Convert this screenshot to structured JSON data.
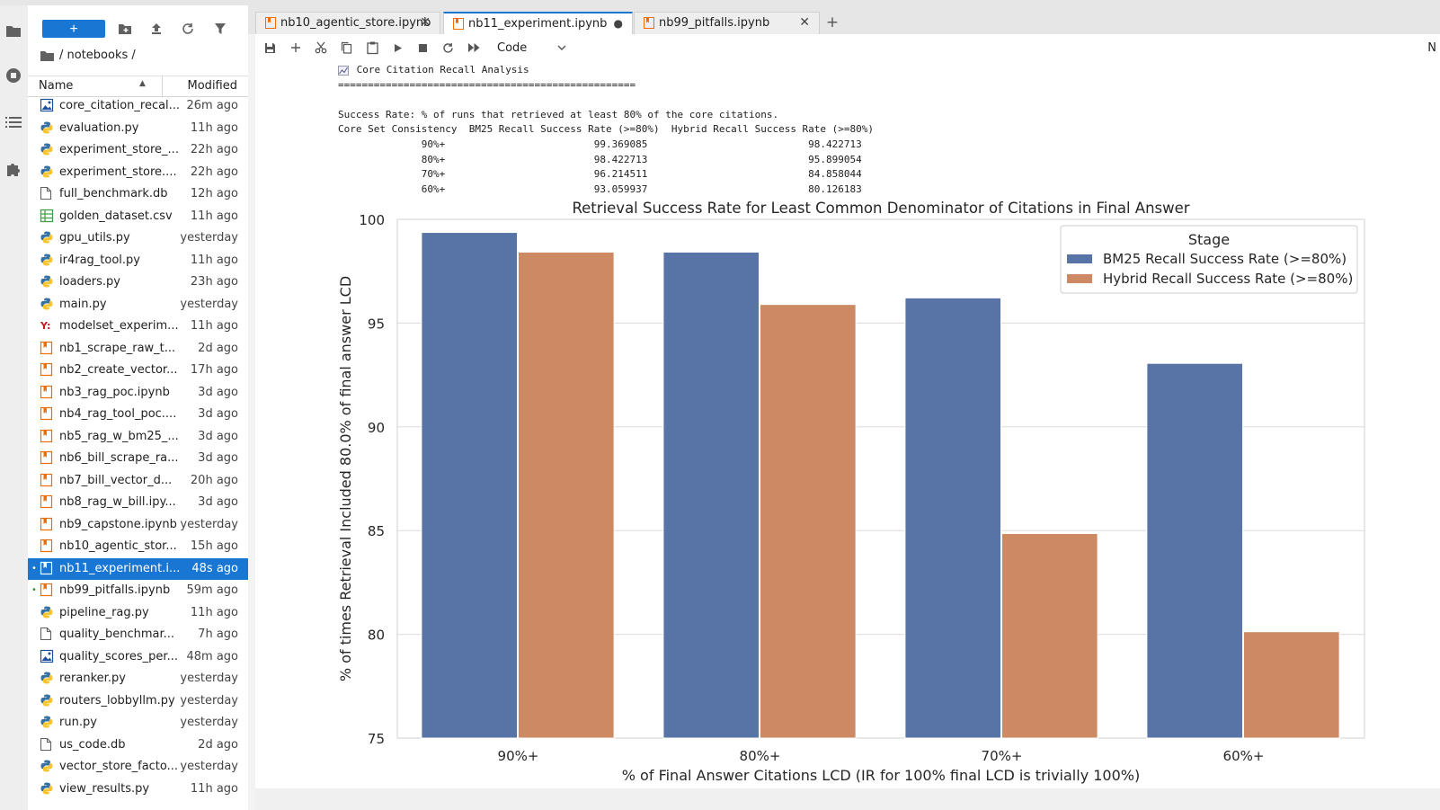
{
  "file_browser": {
    "new_label": "+",
    "breadcrumb": "/ notebooks /",
    "header_name": "Name",
    "header_modified": "Modified",
    "files": [
      {
        "name": "core_citation_recal...",
        "modified": "26m ago",
        "kind": "image-icon"
      },
      {
        "name": "evaluation.py",
        "modified": "11h ago",
        "kind": "python-icon"
      },
      {
        "name": "experiment_store_...",
        "modified": "22h ago",
        "kind": "python-icon"
      },
      {
        "name": "experiment_store....",
        "modified": "22h ago",
        "kind": "python-icon"
      },
      {
        "name": "full_benchmark.db",
        "modified": "12h ago",
        "kind": "file-icon"
      },
      {
        "name": "golden_dataset.csv",
        "modified": "11h ago",
        "kind": "csv-icon"
      },
      {
        "name": "gpu_utils.py",
        "modified": "yesterday",
        "kind": "python-icon"
      },
      {
        "name": "ir4rag_tool.py",
        "modified": "11h ago",
        "kind": "python-icon"
      },
      {
        "name": "loaders.py",
        "modified": "23h ago",
        "kind": "python-icon"
      },
      {
        "name": "main.py",
        "modified": "yesterday",
        "kind": "python-icon"
      },
      {
        "name": "modelset_experim...",
        "modified": "11h ago",
        "kind": "yaml-icon"
      },
      {
        "name": "nb1_scrape_raw_t...",
        "modified": "2d ago",
        "kind": "notebook-icon"
      },
      {
        "name": "nb2_create_vector...",
        "modified": "17h ago",
        "kind": "notebook-icon"
      },
      {
        "name": "nb3_rag_poc.ipynb",
        "modified": "3d ago",
        "kind": "notebook-icon"
      },
      {
        "name": "nb4_rag_tool_poc....",
        "modified": "3d ago",
        "kind": "notebook-icon"
      },
      {
        "name": "nb5_rag_w_bm25_...",
        "modified": "3d ago",
        "kind": "notebook-icon"
      },
      {
        "name": "nb6_bill_scrape_ra...",
        "modified": "3d ago",
        "kind": "notebook-icon"
      },
      {
        "name": "nb7_bill_vector_d...",
        "modified": "20h ago",
        "kind": "notebook-icon"
      },
      {
        "name": "nb8_rag_w_bill.ipy...",
        "modified": "3d ago",
        "kind": "notebook-icon"
      },
      {
        "name": "nb9_capstone.ipynb",
        "modified": "yesterday",
        "kind": "notebook-icon"
      },
      {
        "name": "nb10_agentic_stor...",
        "modified": "15h ago",
        "kind": "notebook-icon"
      },
      {
        "name": "nb11_experiment.i...",
        "modified": "48s ago",
        "kind": "notebook-icon",
        "selected": true,
        "running": true
      },
      {
        "name": "nb99_pitfalls.ipynb",
        "modified": "59m ago",
        "kind": "notebook-icon",
        "running": true
      },
      {
        "name": "pipeline_rag.py",
        "modified": "11h ago",
        "kind": "python-icon"
      },
      {
        "name": "quality_benchmar...",
        "modified": "7h ago",
        "kind": "file-icon"
      },
      {
        "name": "quality_scores_per...",
        "modified": "48m ago",
        "kind": "image-icon"
      },
      {
        "name": "reranker.py",
        "modified": "yesterday",
        "kind": "python-icon"
      },
      {
        "name": "routers_lobbyllm.py",
        "modified": "yesterday",
        "kind": "python-icon"
      },
      {
        "name": "run.py",
        "modified": "yesterday",
        "kind": "python-icon"
      },
      {
        "name": "us_code.db",
        "modified": "2d ago",
        "kind": "file-icon"
      },
      {
        "name": "vector_store_facto...",
        "modified": "yesterday",
        "kind": "python-icon"
      },
      {
        "name": "view_results.py",
        "modified": "11h ago",
        "kind": "python-icon"
      }
    ]
  },
  "tabs": [
    {
      "label": "nb10_agentic_store.ipynb",
      "close": "✕"
    },
    {
      "label": "nb11_experiment.ipynb",
      "close": "●",
      "active": true
    },
    {
      "label": "nb99_pitfalls.ipynb",
      "close": "✕"
    }
  ],
  "tab_add": "+",
  "toolbar": {
    "cell_type": "Code",
    "kernel_letter": "N"
  },
  "output": {
    "heading": "Core Citation Recall Analysis",
    "rule": "==================================================",
    "success_note": "Success Rate: % of runs that retrieved at least 80% of the core citations.",
    "table_header": "Core Set Consistency  BM25 Recall Success Rate (>=80%)  Hybrid Recall Success Rate (>=80%)",
    "table_rows": [
      "              90%+                         99.369085                           98.422713",
      "              80%+                         98.422713                           95.899054",
      "              70%+                         96.214511                           84.858044",
      "              60%+                         93.059937                           80.126183"
    ]
  },
  "chart_data": {
    "type": "bar",
    "title": "Retrieval Success Rate for Least Common Denominator of Citations in Final Answer",
    "xlabel": "% of Final Answer Citations LCD (IR for 100% final LCD is trivially 100%)",
    "ylabel": "% of times Retrieval Included 80.0% of final answer LCD",
    "categories": [
      "90%+",
      "80%+",
      "70%+",
      "60%+"
    ],
    "ylim": [
      75,
      100
    ],
    "yticks": [
      75,
      80,
      85,
      90,
      95,
      100
    ],
    "grid": true,
    "legend": {
      "title": "Stage",
      "position": "top-right"
    },
    "series": [
      {
        "name": "BM25 Recall Success Rate (>=80%)",
        "values": [
          99.369085,
          98.422713,
          96.214511,
          93.059937
        ],
        "color": "#5874a6"
      },
      {
        "name": "Hybrid Recall Success Rate (>=80%)",
        "values": [
          98.422713,
          95.899054,
          84.858044,
          80.126183
        ],
        "color": "#cc8963"
      }
    ]
  }
}
